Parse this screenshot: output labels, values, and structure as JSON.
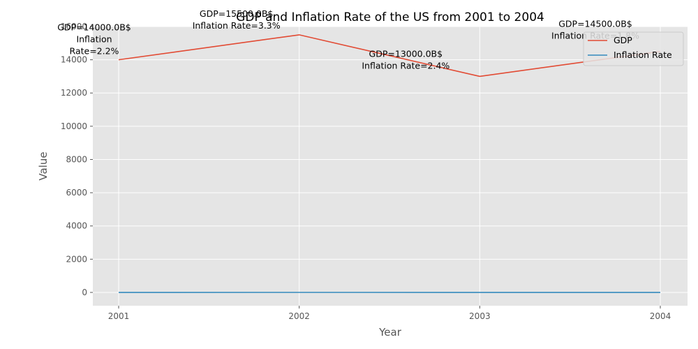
{
  "chart_data": {
    "type": "line",
    "title": "GDP and Inflation Rate of the US from 2001 to 2004",
    "xlabel": "Year",
    "ylabel": "Value",
    "categories": [
      "2001",
      "2002",
      "2003",
      "2004"
    ],
    "ylim": [
      -800,
      16000
    ],
    "yticks": [
      0,
      2000,
      4000,
      6000,
      8000,
      10000,
      12000,
      14000,
      16000
    ],
    "grid": true,
    "legend_position": "top-right",
    "series": [
      {
        "name": "GDP",
        "values": [
          14000,
          15500,
          13000,
          14500
        ],
        "color": "#E24A33"
      },
      {
        "name": "Inflation Rate",
        "values": [
          2.2,
          3.3,
          2.4,
          1.8
        ],
        "color": "#348ABD"
      }
    ],
    "annotations": [
      {
        "lines": [
          "GDP=14000.0B$",
          "Inflation",
          "Rate=2.2%"
        ]
      },
      {
        "lines": [
          "GDP=15500.0B$",
          "Inflation Rate=3.3%"
        ]
      },
      {
        "lines": [
          "GDP=13000.0B$",
          "Inflation Rate=2.4%"
        ]
      },
      {
        "lines": [
          "GDP=14500.0B$",
          "Inflation Rate=1.8%"
        ]
      }
    ]
  }
}
